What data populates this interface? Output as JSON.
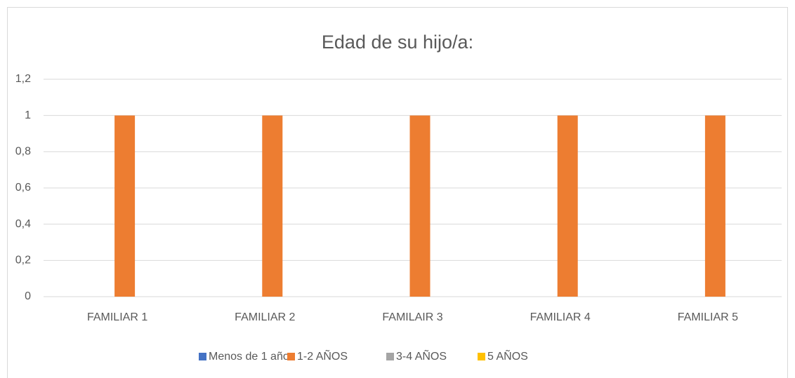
{
  "chart_data": {
    "type": "bar",
    "title": "Edad de su hijo/a:",
    "categories": [
      "FAMILIAR 1",
      "FAMILIAR 2",
      "FAMILAIR 3",
      "FAMILIAR 4",
      "FAMILIAR 5"
    ],
    "series": [
      {
        "name": "Menos de 1 año",
        "color": "#4472c4",
        "values": [
          0,
          0,
          0,
          0,
          0
        ]
      },
      {
        "name": "1-2 AÑOS",
        "color": "#ed7d31",
        "values": [
          1,
          1,
          1,
          1,
          1
        ]
      },
      {
        "name": "3-4 AÑOS",
        "color": "#a5a5a5",
        "values": [
          0,
          0,
          0,
          0,
          0
        ]
      },
      {
        "name": "5 AÑOS",
        "color": "#ffc000",
        "values": [
          0,
          0,
          0,
          0,
          0
        ]
      }
    ],
    "ylim": [
      0,
      1.2
    ],
    "yticks": [
      0,
      {
        "value": 0.2,
        "label": "0,2"
      },
      {
        "value": 0.4,
        "label": "0,4"
      },
      {
        "value": 0.6,
        "label": "0,6"
      },
      {
        "value": 0.8,
        "label": "0,8"
      },
      1,
      {
        "value": 1.2,
        "label": "1,2"
      }
    ],
    "grid": true,
    "legend": "bottom"
  }
}
